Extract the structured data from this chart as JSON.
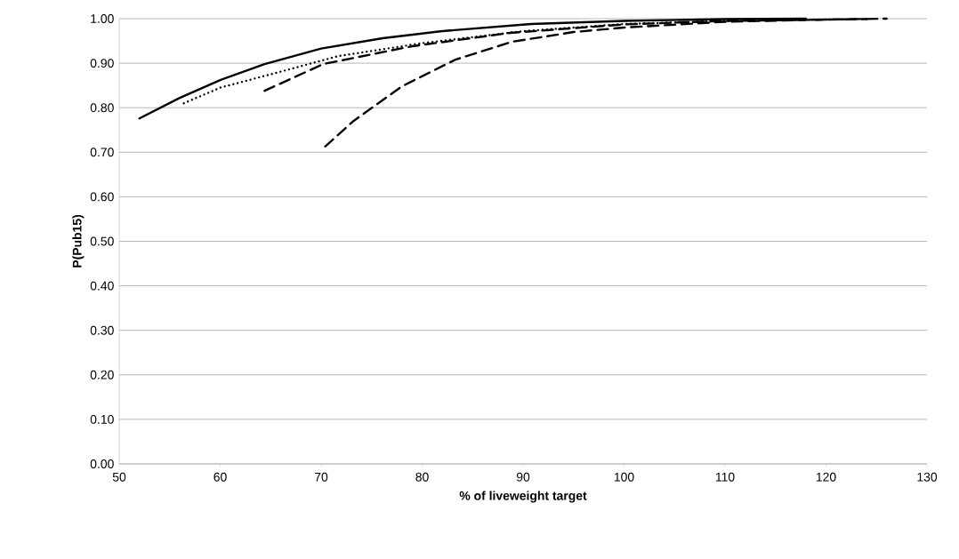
{
  "chart_data": {
    "type": "line",
    "xlabel": "% of liveweight target",
    "ylabel": "P(Pub15)",
    "xlim": [
      50,
      130
    ],
    "xticks": [
      50,
      60,
      70,
      80,
      90,
      100,
      110,
      120,
      130
    ],
    "ylim": [
      0,
      1
    ],
    "yticks": [
      {
        "value": 0,
        "label": "0.00"
      },
      {
        "value": 0.1,
        "label": "0.10"
      },
      {
        "value": 0.2,
        "label": "0.20"
      },
      {
        "value": 0.3,
        "label": "0.30"
      },
      {
        "value": 0.4,
        "label": "0.40"
      },
      {
        "value": 0.5,
        "label": "0.50"
      },
      {
        "value": 0.6,
        "label": "0.60"
      },
      {
        "value": 0.7,
        "label": "0.70"
      },
      {
        "value": 0.8,
        "label": "0.80"
      },
      {
        "value": 0.9,
        "label": "0.90"
      },
      {
        "value": 1.0,
        "label": "1.00"
      }
    ],
    "grid": "y",
    "marker": "none",
    "series": [
      {
        "color": "#000000",
        "line_style": "solid",
        "x": [
          52,
          56,
          60,
          64.4,
          70,
          76.1,
          82,
          90.8,
          100,
          110,
          118
        ],
        "values": [
          0.776,
          0.822,
          0.862,
          0.898,
          0.933,
          0.956,
          0.972,
          0.988,
          0.995,
          0.999,
          1.0
        ]
      },
      {
        "color": "#000000",
        "line_style": "dotted",
        "x": [
          56.4,
          60,
          65.5,
          71.7,
          80,
          90,
          100,
          110,
          118
        ],
        "values": [
          0.81,
          0.845,
          0.878,
          0.916,
          0.945,
          0.972,
          0.988,
          0.995,
          0.998
        ]
      },
      {
        "color": "#000000",
        "line_style": "dashed",
        "x": [
          64.4,
          70.2,
          79,
          88.7,
          100,
          110,
          124
        ],
        "values": [
          0.838,
          0.898,
          0.938,
          0.968,
          0.987,
          0.995,
          0.999
        ]
      },
      {
        "color": "#000000",
        "line_style": "dashed",
        "x": [
          70.4,
          73.2,
          78,
          83.3,
          88.9,
          95,
          100,
          110,
          120,
          126
        ],
        "values": [
          0.713,
          0.77,
          0.848,
          0.908,
          0.948,
          0.97,
          0.98,
          0.993,
          0.998,
          1.0
        ]
      }
    ]
  }
}
